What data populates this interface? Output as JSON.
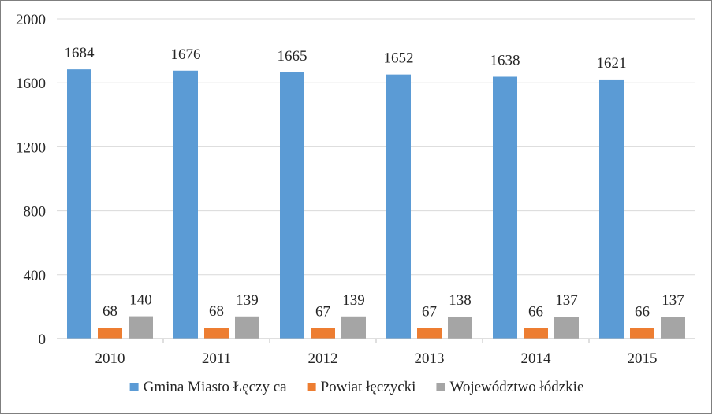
{
  "chart_data": {
    "type": "bar",
    "categories": [
      "2010",
      "2011",
      "2012",
      "2013",
      "2014",
      "2015"
    ],
    "series": [
      {
        "name": "Gmina Miasto Łęczy ca",
        "values": [
          1684,
          1676,
          1665,
          1652,
          1638,
          1621
        ],
        "color": "#5b9bd5"
      },
      {
        "name": "Powiat łęczycki",
        "values": [
          68,
          68,
          67,
          67,
          66,
          66
        ],
        "color": "#ed7d31"
      },
      {
        "name": "Województwo łódzkie",
        "values": [
          140,
          139,
          139,
          138,
          137,
          137
        ],
        "color": "#a5a5a5"
      }
    ],
    "yticks": [
      0,
      400,
      800,
      1200,
      1600,
      2000
    ],
    "ylim": [
      0,
      2000
    ],
    "grid": true,
    "data_labels": true,
    "legend_position": "bottom"
  }
}
